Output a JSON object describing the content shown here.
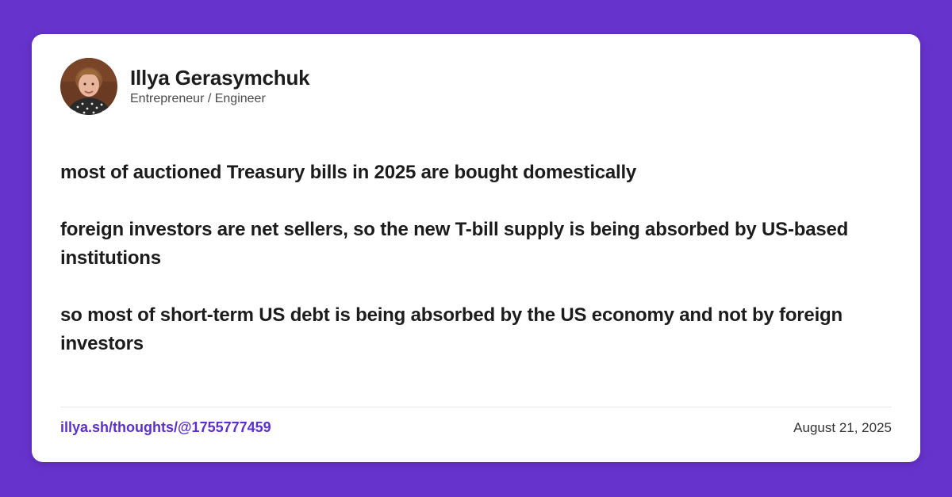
{
  "author": {
    "name": "Illya Gerasymchuk",
    "role": "Entrepreneur / Engineer"
  },
  "post": {
    "paragraphs": [
      "most of auctioned Treasury bills in 2025 are bought domestically",
      "foreign investors are net sellers, so the new T-bill supply is being absorbed by US-based institutions",
      "so most of short-term US debt is being absorbed by the US economy and not by foreign investors"
    ]
  },
  "footer": {
    "link": "illya.sh/thoughts/@1755777459",
    "date": "August 21, 2025"
  },
  "colors": {
    "background": "#6633cc",
    "card": "#ffffff",
    "link": "#5b2fd0",
    "text": "#1c1c1c"
  }
}
